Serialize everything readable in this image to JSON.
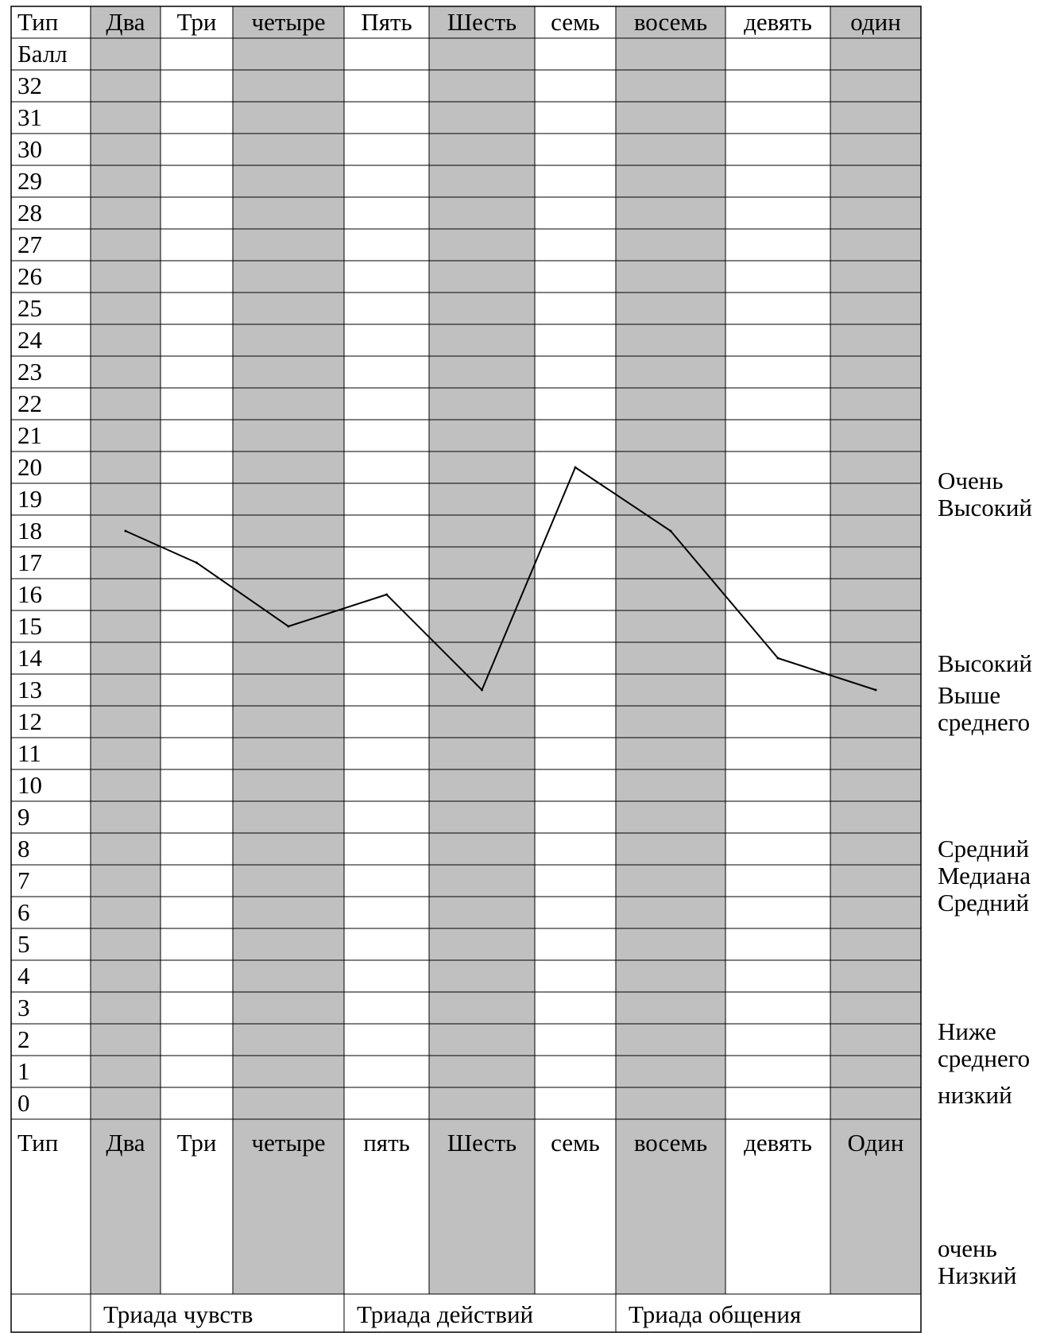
{
  "chart_data": {
    "type": "line",
    "corner_label": "Тип",
    "score_label": "Балл",
    "categories": [
      "Два",
      "Три",
      "четыре",
      "Пять",
      "Шесть",
      "семь",
      "восемь",
      "девять",
      "один"
    ],
    "bottom_categories": [
      "Два",
      "Три",
      "четыре",
      "пять",
      "Шесть",
      "семь",
      "восемь",
      "девять",
      "Один"
    ],
    "scores": [
      "32",
      "31",
      "30",
      "29",
      "28",
      "27",
      "26",
      "25",
      "24",
      "23",
      "22",
      "21",
      "20",
      "19",
      "18",
      "17",
      "16",
      "15",
      "14",
      "13",
      "12",
      "11",
      "10",
      "9",
      "8",
      "7",
      "6",
      "5",
      "4",
      "3",
      "2",
      "1",
      "0"
    ],
    "series": [
      {
        "values": [
          18,
          17,
          15,
          16,
          13,
          20,
          18,
          14,
          13
        ]
      }
    ],
    "ylim": [
      0,
      32
    ],
    "triads": [
      "Триада чувств",
      "Триада действий",
      "Триада общения"
    ],
    "grid": true,
    "shaded_columns": [
      "Два",
      "четыре",
      "Шесть",
      "восемь",
      "один"
    ],
    "shade_color": "#c0c0c0",
    "line_color": "#000000"
  },
  "levels": {
    "very_high": "Очень\nВысокий",
    "high": "Высокий",
    "above_avg": "Выше\nсреднего",
    "average": "Средний\nМедиана\nСредний",
    "below_avg": "Ниже\nсреднего",
    "low": "низкий",
    "very_low": "очень\nНизкий"
  }
}
